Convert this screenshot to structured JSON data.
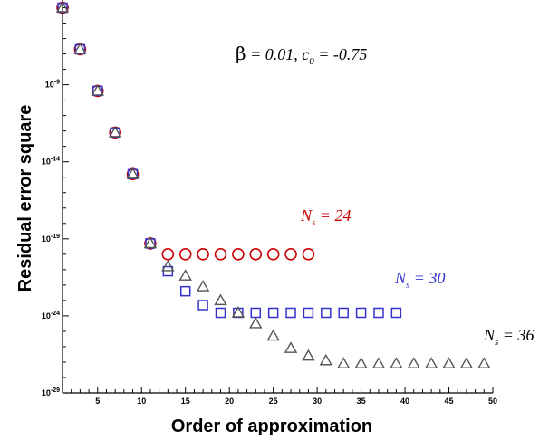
{
  "chart_data": {
    "type": "scatter",
    "xlabel": "Order of approximation",
    "ylabel": "Residual error square",
    "xlim": [
      1,
      50
    ],
    "ylim_log10": [
      -29,
      -3.5
    ],
    "y_scale": "log",
    "x_ticks": [
      5,
      10,
      15,
      20,
      25,
      30,
      35,
      40,
      45,
      50
    ],
    "y_ticks": [
      {
        "exp": -9,
        "label_base": "10",
        "label_exp": "-9"
      },
      {
        "exp": -14,
        "label_base": "10",
        "label_exp": "-14"
      },
      {
        "exp": -19,
        "label_base": "10",
        "label_exp": "-19"
      },
      {
        "exp": -24,
        "label_base": "10",
        "label_exp": "-24"
      },
      {
        "exp": -29,
        "label_base": "10",
        "label_exp": "-29"
      }
    ],
    "annotation": {
      "beta_symbol": "β",
      "beta_text": " = 0.01,  c",
      "c_sub": "0",
      "c_text": " = -0.75"
    },
    "series": [
      {
        "label_main": "N",
        "label_sub": "s",
        "label_rest": " = 24",
        "marker": "circle",
        "color": "#cc0000",
        "x": [
          1,
          3,
          5,
          7,
          9,
          11,
          13,
          15,
          17,
          19,
          21,
          23,
          25,
          27,
          29
        ],
        "log10_y": [
          -4.0,
          -6.7,
          -9.4,
          -12.1,
          -14.8,
          -19.3,
          -20.0,
          -20.0,
          -20.0,
          -20.0,
          -20.0,
          -20.0,
          -20.0,
          -20.0,
          -20.0
        ]
      },
      {
        "label_main": "N",
        "label_sub": "s",
        "label_rest": " = 30",
        "marker": "square",
        "color": "#3333cc",
        "x": [
          1,
          3,
          5,
          7,
          9,
          11,
          13,
          15,
          17,
          19,
          21,
          23,
          25,
          27,
          29,
          31,
          33,
          35,
          37,
          39
        ],
        "log10_y": [
          -4.0,
          -6.7,
          -9.4,
          -12.1,
          -14.8,
          -19.3,
          -21.1,
          -22.4,
          -23.3,
          -23.8,
          -23.8,
          -23.8,
          -23.8,
          -23.8,
          -23.8,
          -23.8,
          -23.8,
          -23.8,
          -23.8,
          -23.8
        ]
      },
      {
        "label_main": "N",
        "label_sub": "s",
        "label_rest": " = 36",
        "marker": "triangle",
        "color": "#555555",
        "x": [
          1,
          3,
          5,
          7,
          9,
          11,
          13,
          15,
          17,
          19,
          21,
          23,
          25,
          27,
          29,
          31,
          33,
          35,
          37,
          39,
          41,
          43,
          45,
          47,
          49
        ],
        "log10_y": [
          -4.0,
          -6.7,
          -9.4,
          -12.1,
          -14.8,
          -19.3,
          -20.8,
          -21.4,
          -22.1,
          -23.0,
          -23.8,
          -24.5,
          -25.3,
          -26.1,
          -26.6,
          -26.9,
          -27.1,
          -27.1,
          -27.1,
          -27.1,
          -27.1,
          -27.1,
          -27.1,
          -27.1,
          -27.1
        ]
      }
    ]
  }
}
